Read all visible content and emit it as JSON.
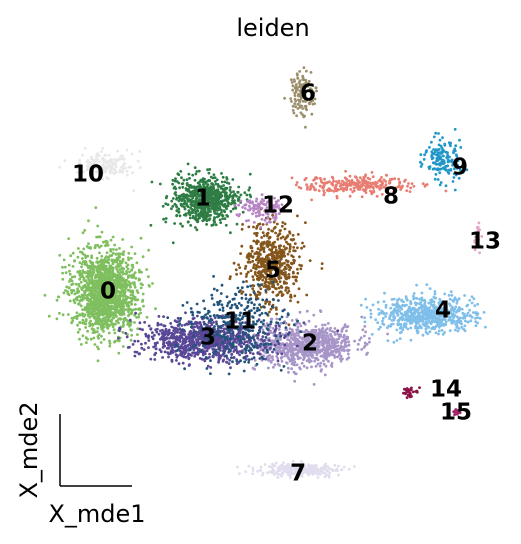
{
  "chart_data": {
    "type": "scatter",
    "title": "leiden",
    "xlabel": "X_mde1",
    "ylabel": "X_mde2",
    "grid": false,
    "legend": "on data",
    "series": [
      {
        "name": "0",
        "color": "#7fbf5f",
        "center": [
          105,
          292
        ],
        "spread": [
          32,
          42
        ],
        "n": 1500
      },
      {
        "name": "1",
        "color": "#2e7d44",
        "center": [
          205,
          200
        ],
        "spread": [
          32,
          24
        ],
        "n": 650
      },
      {
        "name": "2",
        "color": "#a795c8",
        "center": [
          305,
          345
        ],
        "spread": [
          50,
          22
        ],
        "n": 800
      },
      {
        "name": "3",
        "color": "#5a4796",
        "center": [
          205,
          340
        ],
        "spread": [
          62,
          20
        ],
        "n": 900
      },
      {
        "name": "4",
        "color": "#7fbfea",
        "center": [
          425,
          315
        ],
        "spread": [
          50,
          18
        ],
        "n": 600
      },
      {
        "name": "5",
        "color": "#84561c",
        "center": [
          272,
          262
        ],
        "spread": [
          28,
          38
        ],
        "n": 550
      },
      {
        "name": "6",
        "color": "#9c8f6c",
        "center": [
          303,
          95
        ],
        "spread": [
          12,
          25
        ],
        "n": 120
      },
      {
        "name": "7",
        "color": "#e1ddee",
        "center": [
          300,
          470
        ],
        "spread": [
          40,
          6
        ],
        "n": 300
      },
      {
        "name": "8",
        "color": "#e87d72",
        "center": [
          355,
          185
        ],
        "spread": [
          55,
          10
        ],
        "n": 260
      },
      {
        "name": "9",
        "color": "#2196c9",
        "center": [
          442,
          160
        ],
        "spread": [
          18,
          22
        ],
        "n": 150
      },
      {
        "name": "10",
        "color": "#e8e8e8",
        "center": [
          105,
          165
        ],
        "spread": [
          30,
          12
        ],
        "n": 160
      },
      {
        "name": "11",
        "color": "#21557c",
        "center": [
          235,
          325
        ],
        "spread": [
          48,
          38
        ],
        "n": 320
      },
      {
        "name": "12",
        "color": "#b784c5",
        "center": [
          262,
          210
        ],
        "spread": [
          20,
          14
        ],
        "n": 110
      },
      {
        "name": "13",
        "color": "#e5a5c7",
        "center": [
          478,
          238
        ],
        "spread": [
          4,
          14
        ],
        "n": 25
      },
      {
        "name": "14",
        "color": "#8b1547",
        "center": [
          410,
          392
        ],
        "spread": [
          8,
          5
        ],
        "n": 30
      },
      {
        "name": "15",
        "color": "#a3266a",
        "center": [
          457,
          412
        ],
        "spread": [
          5,
          3
        ],
        "n": 18
      }
    ],
    "labels": [
      {
        "text": "0",
        "x": 108,
        "y": 292
      },
      {
        "text": "1",
        "x": 203,
        "y": 199
      },
      {
        "text": "2",
        "x": 310,
        "y": 344
      },
      {
        "text": "3",
        "x": 208,
        "y": 338
      },
      {
        "text": "4",
        "x": 443,
        "y": 311
      },
      {
        "text": "5",
        "x": 273,
        "y": 271
      },
      {
        "text": "6",
        "x": 308,
        "y": 94
      },
      {
        "text": "7",
        "x": 298,
        "y": 474
      },
      {
        "text": "8",
        "x": 391,
        "y": 197
      },
      {
        "text": "9",
        "x": 460,
        "y": 168
      },
      {
        "text": "10",
        "x": 88,
        "y": 175
      },
      {
        "text": "11",
        "x": 240,
        "y": 322
      },
      {
        "text": "12",
        "x": 278,
        "y": 206
      },
      {
        "text": "13",
        "x": 485,
        "y": 242
      },
      {
        "text": "14",
        "x": 446,
        "y": 390
      },
      {
        "text": "15",
        "x": 456,
        "y": 413
      }
    ]
  }
}
